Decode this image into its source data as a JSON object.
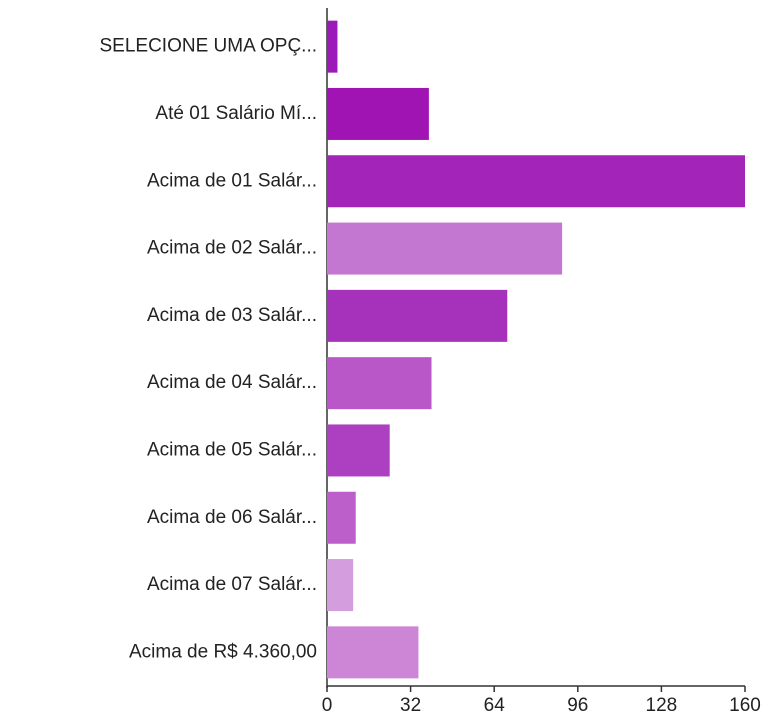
{
  "chart_data": {
    "type": "bar",
    "orientation": "horizontal",
    "categories": [
      "SELECIONE UMA OPÇ...",
      "Até 01 Salário Mí...",
      "Acima de 01 Salár...",
      "Acima de 02 Salár...",
      "Acima de 03 Salár...",
      "Acima de 04 Salár...",
      "Acima de 05 Salár...",
      "Acima de 06 Salár...",
      "Acima de 07 Salár...",
      "Acima de R$ 4.360,00"
    ],
    "values": [
      4,
      39,
      160,
      90,
      69,
      40,
      24,
      11,
      10,
      35
    ],
    "colors": [
      "#9c1ab8",
      "#9f14b3",
      "#a324b8",
      "#c477d0",
      "#a632bb",
      "#b957c8",
      "#ad40c0",
      "#bc5fcb",
      "#d49ddd",
      "#cd86d6"
    ],
    "xlim": [
      0,
      160
    ],
    "xticks": [
      0,
      32,
      64,
      96,
      128,
      160
    ],
    "grid": false
  }
}
